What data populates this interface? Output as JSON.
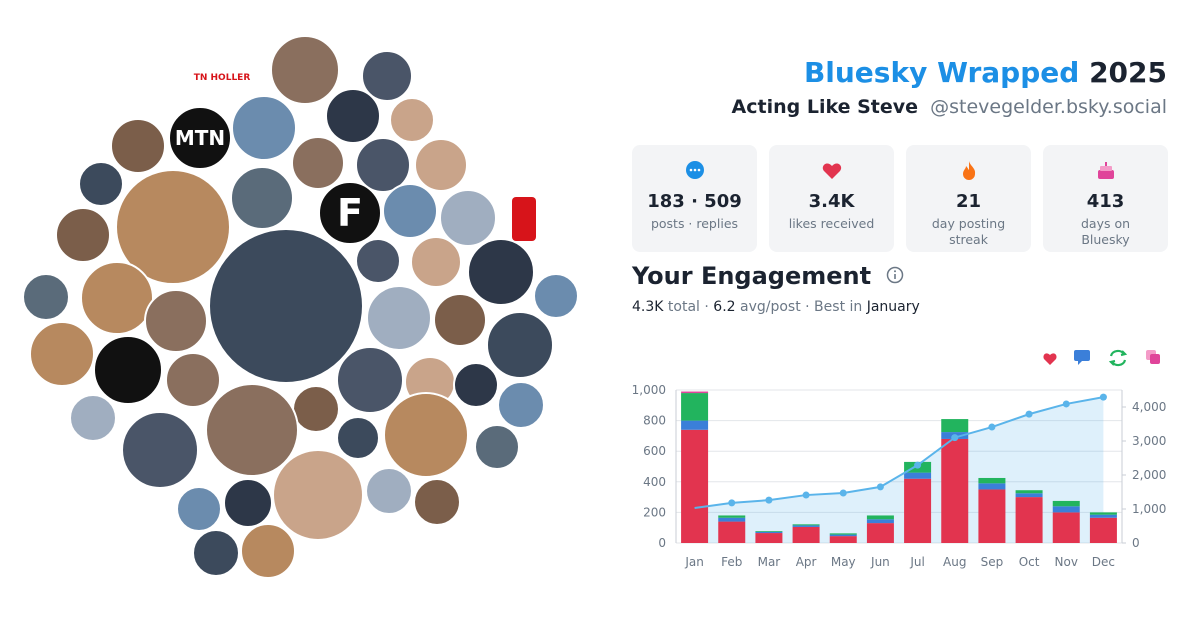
{
  "header": {
    "title": "Bluesky Wrapped",
    "year": "2025",
    "name": "Acting Like Steve",
    "handle": "@stevegelder.bsky.social"
  },
  "collage": {
    "logos": [
      "TN HOLLER",
      "MTN",
      "F"
    ]
  },
  "stats": [
    {
      "value": "183 · 509",
      "label": "posts · replies"
    },
    {
      "value": "3.4K",
      "label": "likes received"
    },
    {
      "value": "21",
      "label": "day posting streak"
    },
    {
      "value": "413",
      "label": "days on Bluesky"
    }
  ],
  "engagement": {
    "title": "Your Engagement",
    "summary": [
      "4.3K",
      " total · ",
      "6.2",
      " avg/post · Best in ",
      "January"
    ]
  },
  "chart_data": {
    "type": "bar",
    "stacked": true,
    "grid": true,
    "categories": [
      "Jan",
      "Feb",
      "Mar",
      "Apr",
      "May",
      "Jun",
      "Jul",
      "Aug",
      "Sep",
      "Oct",
      "Nov",
      "Dec"
    ],
    "series": [
      {
        "color": "#e2344f",
        "values": [
          740,
          140,
          65,
          105,
          45,
          130,
          420,
          680,
          350,
          300,
          200,
          165
        ]
      },
      {
        "color": "#3b7fd9",
        "values": [
          60,
          25,
          8,
          10,
          10,
          25,
          40,
          45,
          40,
          25,
          40,
          20
        ]
      },
      {
        "color": "#22b45e",
        "values": [
          180,
          15,
          5,
          7,
          8,
          25,
          70,
          85,
          35,
          20,
          35,
          15
        ]
      },
      {
        "color": "#e0449a",
        "values": [
          10,
          0,
          0,
          0,
          0,
          0,
          0,
          0,
          0,
          0,
          0,
          0
        ]
      },
      {
        "type": "line",
        "axis": "y2",
        "color": "#5ab4ea",
        "values": [
          1030,
          1180,
          1260,
          1410,
          1470,
          1650,
          2290,
          3100,
          3410,
          3790,
          4090,
          4290
        ]
      }
    ],
    "ylim": [
      0,
      1000
    ],
    "yticks": [
      0,
      200,
      400,
      600,
      800,
      {
        "value": 1000,
        "label": "1,000"
      }
    ],
    "y2lim": [
      0,
      4500
    ],
    "y2ticks": [
      0,
      {
        "value": 1000,
        "label": "1,000"
      },
      {
        "value": 2000,
        "label": "2,000"
      },
      {
        "value": 3000,
        "label": "3,000"
      },
      {
        "value": 4000,
        "label": "4,000"
      }
    ]
  }
}
